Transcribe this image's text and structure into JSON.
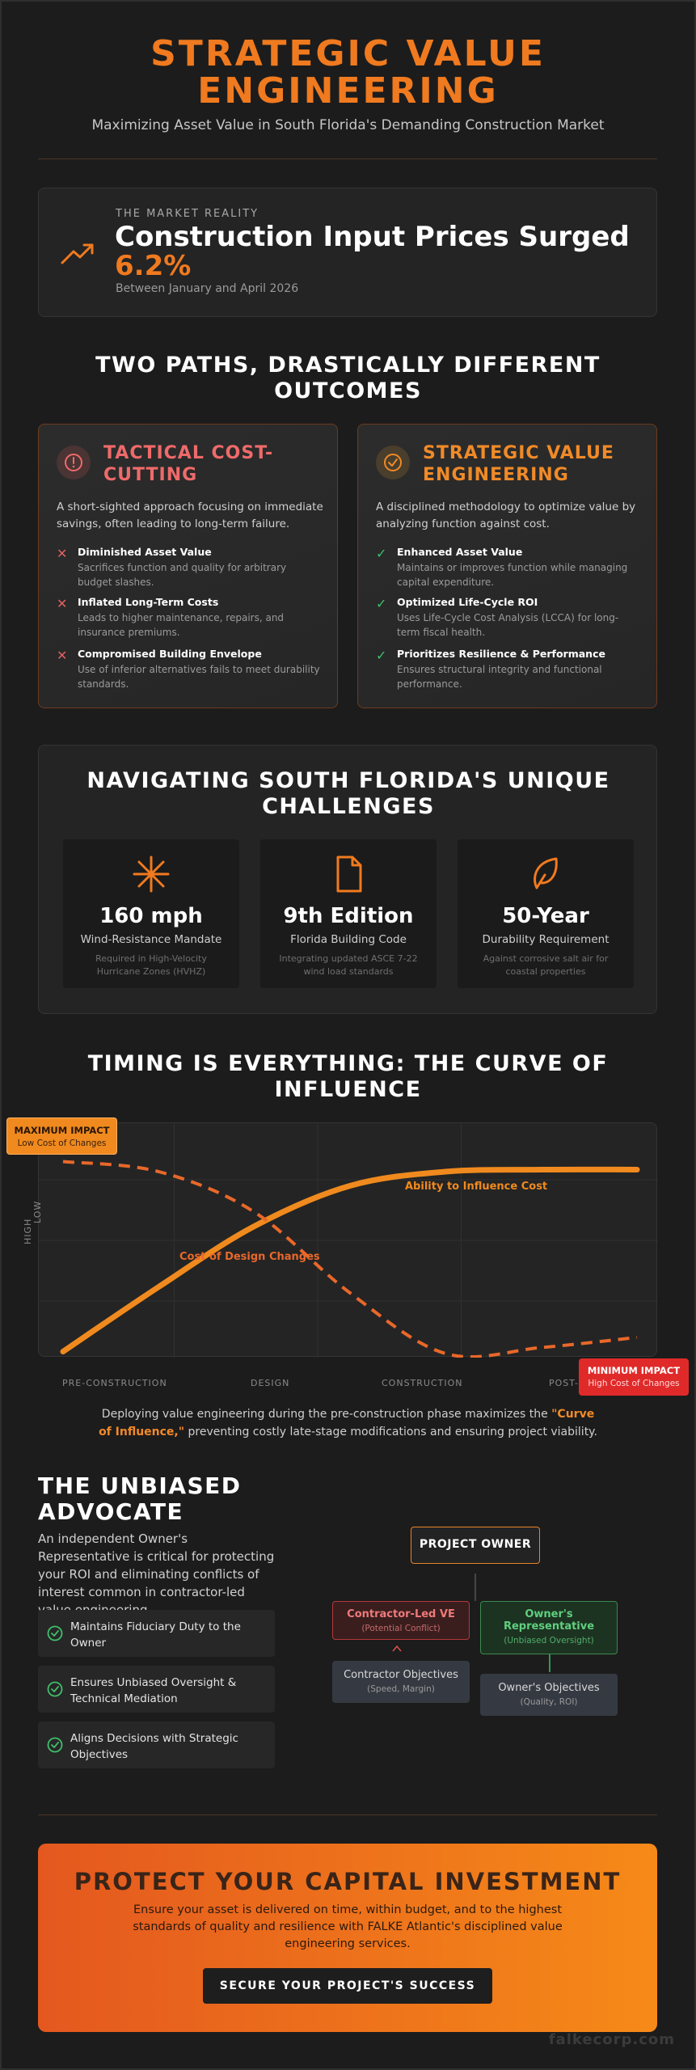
{
  "header": {
    "title_line1": "STRATEGIC VALUE",
    "title_line2": "ENGINEERING",
    "subtitle": "Maximizing Asset Value in South Florida's Demanding Construction Market"
  },
  "market": {
    "eyebrow": "THE MARKET REALITY",
    "headline": "Construction Input Prices Surged",
    "stat": "6.2%",
    "period": "Between January and April 2026",
    "icon": "trending-up-icon"
  },
  "paths": {
    "title_line1": "TWO PATHS, DRASTICALLY DIFFERENT",
    "title_line2": "OUTCOMES",
    "tactical": {
      "title_line1": "TACTICAL COST-",
      "title_line2": "CUTTING",
      "description": "A short-sighted approach focusing on immediate savings, often leading to long-term failure.",
      "items": [
        {
          "title": "Diminished Asset Value",
          "desc": "Sacrifices function and quality for arbitrary budget slashes."
        },
        {
          "title": "Inflated Long-Term Costs",
          "desc": "Leads to higher maintenance, repairs, and insurance premiums."
        },
        {
          "title": "Compromised Building Envelope",
          "desc": "Use of inferior alternatives fails to meet durability standards."
        }
      ]
    },
    "strategic": {
      "title_line1": "STRATEGIC VALUE",
      "title_line2": "ENGINEERING",
      "description": "A disciplined methodology to optimize value by analyzing function against cost.",
      "items": [
        {
          "title": "Enhanced Asset Value",
          "desc": "Maintains or improves function while managing capital expenditure."
        },
        {
          "title": "Optimized Life-Cycle ROI",
          "desc": "Uses Life-Cycle Cost Analysis (LCCA) for long-term fiscal health."
        },
        {
          "title": "Prioritizes Resilience & Performance",
          "desc": "Ensures structural integrity and functional performance."
        }
      ]
    }
  },
  "challenges": {
    "title_line1": "NAVIGATING SOUTH FLORIDA'S UNIQUE",
    "title_line2": "CHALLENGES",
    "items": [
      {
        "value": "160 mph",
        "label": "Wind-Resistance Mandate",
        "desc": "Required in High-Velocity Hurricane Zones (HVHZ)",
        "icon": "wind-burst-icon"
      },
      {
        "value": "9th Edition",
        "label": "Florida Building Code",
        "desc": "Integrating updated ASCE 7-22 wind load standards",
        "icon": "document-icon"
      },
      {
        "value": "50-Year",
        "label": "Durability Requirement",
        "desc": "Against corrosive salt air for coastal properties",
        "icon": "leaf-icon"
      }
    ]
  },
  "curve": {
    "title_line1": "TIMING IS EVERYTHING: THE CURVE OF",
    "title_line2": "INFLUENCE",
    "y_high": "HIGH",
    "y_low": "LOW",
    "series_influence": "Ability to Influence Cost",
    "series_cost": "Cost of Design Changes",
    "max_callout_main": "MAXIMUM IMPACT",
    "max_callout_sub": "Low Cost of Changes",
    "min_callout_main": "MINIMUM IMPACT",
    "min_callout_sub": "High Cost of Changes",
    "note_prefix": "Deploying value engineering during the pre-construction phase maximizes the ",
    "note_highlight": "\"Curve of Influence,\"",
    "note_suffix": " preventing costly late-stage modifications and ensuring project viability."
  },
  "chart_data": {
    "type": "line",
    "categories": [
      "PRE-CONSTRUCTION",
      "DESIGN",
      "CONSTRUCTION",
      "POST-OCCUPANCY"
    ],
    "x": [
      0,
      0.5,
      1,
      1.5,
      2,
      2.5,
      3
    ],
    "series": [
      {
        "name": "Ability to Influence Cost",
        "values": [
          0.03,
          0.35,
          0.65,
          0.85,
          0.92,
          0.93,
          0.93
        ]
      },
      {
        "name": "Cost of Design Changes",
        "values": [
          0.97,
          0.92,
          0.72,
          0.32,
          0.02,
          0.05,
          0.1
        ]
      }
    ],
    "ylim": [
      0,
      1
    ],
    "colors": {
      "influence": "#f08a1e",
      "cost": "#e8682a"
    },
    "grid": true
  },
  "advocate": {
    "title_line1": "THE UNBIASED",
    "title_line2": "ADVOCATE",
    "description": "An independent Owner's Representative is critical for protecting your ROI and eliminating conflicts of interest common in contractor-led value engineering.",
    "items": [
      {
        "text": "Maintains Fiduciary Duty to the Owner"
      },
      {
        "text": "Ensures Unbiased Oversight & Technical Mediation"
      },
      {
        "text": "Aligns Decisions with Strategic Objectives"
      }
    ],
    "org": {
      "owner": "PROJECT OWNER",
      "contractor_main": "Contractor-Led VE",
      "contractor_sub": "(Potential Conflict)",
      "rep_main_line1": "Owner's",
      "rep_main_line2": "Representative",
      "rep_sub": "(Unbiased Oversight)",
      "contractor_obj_main": "Contractor Objectives",
      "contractor_obj_sub": "(Speed, Margin)",
      "owner_obj_main": "Owner's Objectives",
      "owner_obj_sub": "(Quality, ROI)"
    }
  },
  "cta": {
    "title": "PROTECT YOUR CAPITAL INVESTMENT",
    "description": "Ensure your asset is delivered on time, within budget, and to the highest standards of quality and resilience with FALKE Atlantic's disciplined value engineering services.",
    "button": "SECURE YOUR PROJECT'S SUCCESS"
  },
  "brand": "falkecorp.com",
  "colors": {
    "accent": "#f07a1f",
    "danger": "#ef6a6a",
    "success": "#3fbf6a",
    "background": "#1c1c1c"
  }
}
